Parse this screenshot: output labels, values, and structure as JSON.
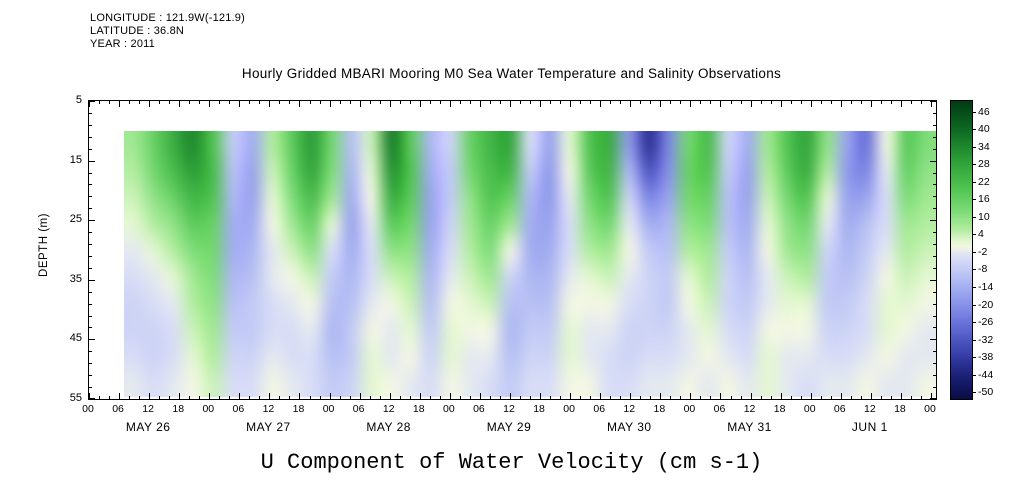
{
  "header": {
    "longitude": "LONGITUDE : 121.9W(-121.9)",
    "latitude": "LATITUDE : 36.8N",
    "year": "YEAR : 2011"
  },
  "title": "Hourly Gridded MBARI Mooring M0 Sea Water Temperature and Salinity Observations",
  "y_axis": {
    "label": "DEPTH (m)",
    "ticks": [
      5,
      15,
      25,
      35,
      45,
      55
    ],
    "min": 5,
    "max": 55
  },
  "x_axis": {
    "t_max": 169,
    "major_step_hours": 6,
    "minor_step_hours": 2,
    "hour_ticks": [
      "00",
      "06",
      "12",
      "18",
      "00",
      "06",
      "12",
      "18",
      "00",
      "06",
      "12",
      "18",
      "00",
      "06",
      "12",
      "18",
      "00",
      "06",
      "12",
      "18",
      "00",
      "06",
      "12",
      "18",
      "00",
      "06",
      "12",
      "18",
      "00"
    ],
    "day_labels": [
      {
        "label": "MAY 26",
        "t": 12
      },
      {
        "label": "MAY 27",
        "t": 36
      },
      {
        "label": "MAY 28",
        "t": 60
      },
      {
        "label": "MAY 29",
        "t": 84
      },
      {
        "label": "MAY 30",
        "t": 108
      },
      {
        "label": "MAY 31",
        "t": 132
      },
      {
        "label": "JUN 1",
        "t": 156
      }
    ]
  },
  "colorbar": {
    "labels": [
      46,
      40,
      34,
      28,
      22,
      16,
      10,
      4,
      -2,
      -8,
      -14,
      -20,
      -26,
      -32,
      -38,
      -44,
      -50
    ],
    "vmax": 50,
    "vmin": -52
  },
  "chart_data": {
    "type": "heatmap",
    "title": "U Component of Water Velocity (cm s-1)",
    "units": "cm s-1",
    "ylabel": "DEPTH (m)",
    "depths": [
      10,
      15,
      20,
      25,
      30,
      35,
      40,
      45,
      50,
      55
    ],
    "x_hours": [
      6,
      10,
      14,
      18,
      22,
      26,
      30,
      34,
      38,
      42,
      46,
      50,
      54,
      58,
      62,
      66,
      70,
      74,
      78,
      82,
      86,
      90,
      94,
      98,
      102,
      106,
      110,
      114,
      118,
      122,
      126,
      130,
      134,
      138,
      142,
      146,
      150,
      154,
      158,
      162,
      166
    ],
    "values": [
      [
        8,
        16,
        26,
        34,
        20,
        -8,
        -14,
        6,
        18,
        30,
        14,
        -10,
        4,
        36,
        18,
        -12,
        -6,
        16,
        24,
        28,
        -4,
        -16,
        2,
        20,
        26,
        -18,
        -40,
        -22,
        14,
        22,
        -6,
        -14,
        8,
        20,
        28,
        10,
        -16,
        -26,
        0,
        18,
        12
      ],
      [
        6,
        14,
        22,
        30,
        22,
        -10,
        -16,
        4,
        16,
        28,
        12,
        -12,
        2,
        32,
        20,
        -14,
        -8,
        14,
        22,
        24,
        -8,
        -18,
        0,
        18,
        24,
        -12,
        -32,
        -20,
        16,
        20,
        -8,
        -16,
        6,
        18,
        26,
        6,
        -18,
        -22,
        -2,
        16,
        10
      ],
      [
        4,
        10,
        16,
        24,
        20,
        -12,
        -16,
        2,
        12,
        22,
        8,
        -14,
        0,
        26,
        18,
        -16,
        -8,
        10,
        20,
        16,
        -12,
        -18,
        -2,
        14,
        20,
        -6,
        -22,
        -16,
        14,
        16,
        -10,
        -16,
        4,
        14,
        20,
        2,
        -16,
        -16,
        -4,
        12,
        8
      ],
      [
        2,
        6,
        10,
        18,
        16,
        -14,
        -14,
        0,
        8,
        16,
        2,
        -16,
        -2,
        18,
        14,
        -16,
        -6,
        8,
        16,
        8,
        -14,
        -16,
        -4,
        10,
        14,
        -2,
        -14,
        -12,
        10,
        12,
        -10,
        -14,
        2,
        10,
        14,
        -2,
        -14,
        -10,
        -4,
        8,
        6
      ],
      [
        -2,
        2,
        6,
        12,
        14,
        -14,
        -12,
        -2,
        4,
        10,
        -4,
        -14,
        -4,
        10,
        10,
        -14,
        -4,
        6,
        12,
        0,
        -14,
        -14,
        -4,
        6,
        8,
        0,
        -8,
        -10,
        6,
        8,
        -8,
        -12,
        0,
        8,
        10,
        -6,
        -12,
        -8,
        -2,
        6,
        4
      ],
      [
        -4,
        -2,
        2,
        8,
        12,
        -12,
        -10,
        -2,
        0,
        4,
        -8,
        -12,
        -4,
        4,
        6,
        -12,
        -2,
        4,
        8,
        -6,
        -12,
        -12,
        -2,
        2,
        4,
        -2,
        -6,
        -8,
        2,
        6,
        -6,
        -10,
        -2,
        4,
        6,
        -8,
        -10,
        -6,
        0,
        4,
        2
      ],
      [
        -6,
        -4,
        -2,
        6,
        10,
        -10,
        -8,
        -4,
        -2,
        0,
        -10,
        -10,
        -2,
        0,
        4,
        -10,
        0,
        2,
        4,
        -10,
        -10,
        -10,
        0,
        0,
        0,
        -4,
        -6,
        -8,
        0,
        4,
        -6,
        -8,
        -2,
        2,
        2,
        -8,
        -8,
        -4,
        2,
        2,
        0
      ],
      [
        -6,
        -6,
        -4,
        4,
        8,
        -8,
        -8,
        -4,
        -4,
        -2,
        -12,
        -8,
        0,
        -2,
        2,
        -8,
        2,
        0,
        0,
        -12,
        -8,
        -8,
        2,
        -2,
        -2,
        -6,
        -6,
        -6,
        -2,
        2,
        -4,
        -6,
        0,
        0,
        0,
        -6,
        -6,
        -4,
        2,
        0,
        -2
      ],
      [
        -4,
        -6,
        -4,
        2,
        6,
        -6,
        -6,
        -2,
        -4,
        -4,
        -10,
        -8,
        2,
        -2,
        0,
        -6,
        2,
        -2,
        -2,
        -10,
        -6,
        -6,
        2,
        -2,
        -4,
        -6,
        -4,
        -4,
        -2,
        0,
        -2,
        -4,
        2,
        -2,
        -2,
        -4,
        -4,
        -2,
        0,
        -2,
        -2
      ],
      [
        -2,
        -4,
        -2,
        0,
        4,
        -4,
        -4,
        0,
        -2,
        -4,
        -8,
        -6,
        2,
        0,
        -2,
        -4,
        0,
        -2,
        -4,
        -8,
        -4,
        -4,
        0,
        0,
        -4,
        -4,
        -2,
        -2,
        0,
        -2,
        0,
        -2,
        2,
        -2,
        -4,
        -2,
        -2,
        0,
        -2,
        -2,
        0
      ]
    ],
    "color_stops": [
      [
        50,
        "#003d14"
      ],
      [
        40,
        "#0f6b22"
      ],
      [
        30,
        "#2c9e38"
      ],
      [
        20,
        "#52c452"
      ],
      [
        12,
        "#7fdd7a"
      ],
      [
        6,
        "#b2eda0"
      ],
      [
        2,
        "#e4f7d2"
      ],
      [
        0,
        "#f2f6e4"
      ],
      [
        -3,
        "#dde2f6"
      ],
      [
        -8,
        "#c3cbf5"
      ],
      [
        -14,
        "#a3aef0"
      ],
      [
        -20,
        "#8791e8"
      ],
      [
        -26,
        "#6a73da"
      ],
      [
        -32,
        "#4d55c2"
      ],
      [
        -38,
        "#333aa4"
      ],
      [
        -44,
        "#1c2278"
      ],
      [
        -52,
        "#090d46"
      ]
    ]
  }
}
